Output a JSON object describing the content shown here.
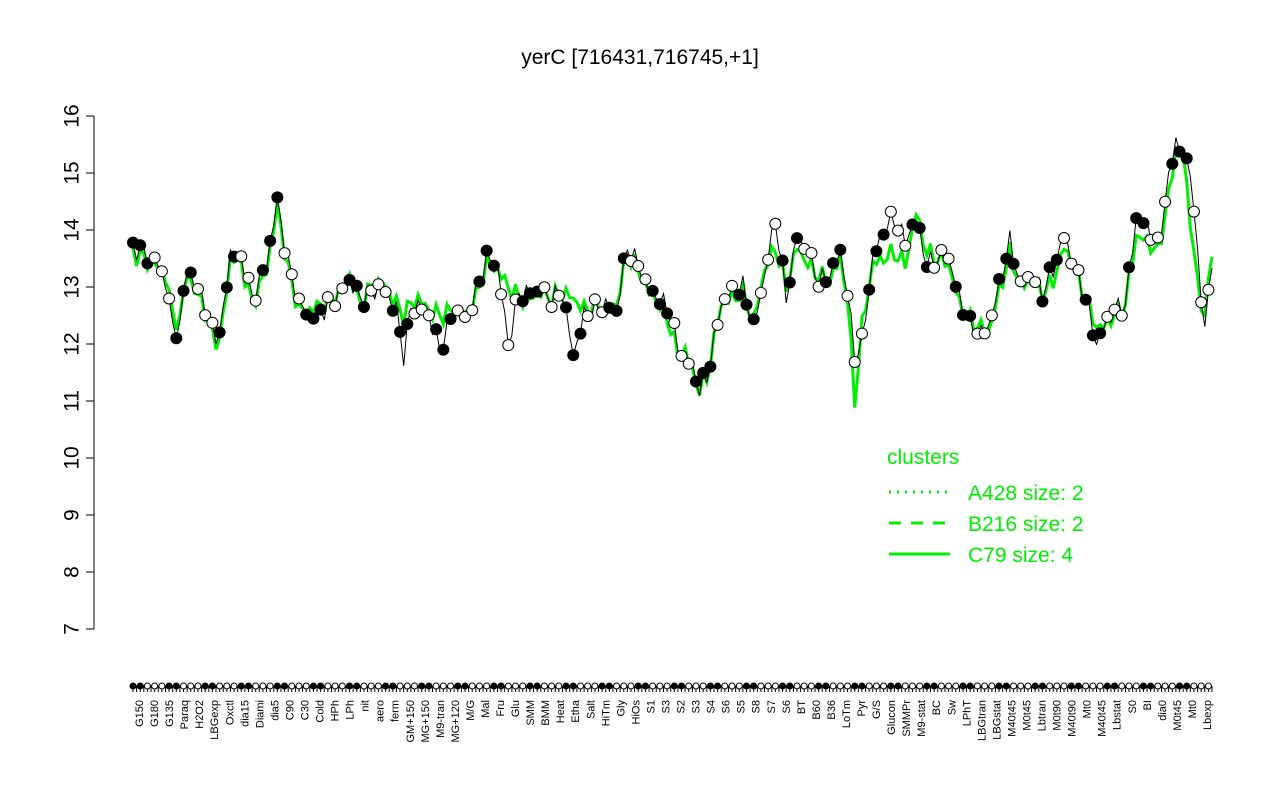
{
  "chart_data": {
    "type": "line",
    "title": "yerC [716431,716745,+1]",
    "xlabel": "",
    "ylabel": "",
    "ylim": [
      7,
      16
    ],
    "yticks": [
      7,
      8,
      9,
      10,
      11,
      12,
      13,
      14,
      15,
      16
    ],
    "grid": false,
    "categories_visible": [
      "G150",
      "G180",
      "G135",
      "Paraq",
      "H2O2",
      "LBGexp",
      "Oxctl",
      "dia15",
      "Diami",
      "dia5",
      "C90",
      "C30",
      "Cold",
      "HPh",
      "LPh",
      "nit",
      "aero",
      "ferm",
      "GM+150",
      "MG+150",
      "M9-tran",
      "MG+120",
      "M/G",
      "Mal",
      "Fru",
      "Glu",
      "SMM",
      "BMM",
      "Heat",
      "Etha",
      "Salt",
      "HiTm",
      "Gly",
      "HiOs",
      "S1",
      "S3",
      "S2",
      "S3",
      "S4",
      "S6",
      "S5",
      "S8",
      "S7",
      "S6",
      "BT",
      "B60",
      "B36",
      "LoTm",
      "Pyr",
      "G/S",
      "Glucon",
      "SMMPr",
      "M9-stat",
      "BC",
      "Sw",
      "LPhT",
      "LBGtran",
      "LBGstat",
      "M40t45",
      "M0t45",
      "Lbtran",
      "M0t90",
      "M40t90",
      "Mt0",
      "M40t45",
      "Lbstat",
      "S0",
      "BI",
      "dia0",
      "M0t45",
      "Mt0",
      "Lbexp"
    ],
    "legend": {
      "title": "clusters",
      "placement": "right",
      "entries": [
        {
          "label": "A428 size: 2",
          "style": "dotted"
        },
        {
          "label": "B216 size: 2",
          "style": "dashed"
        },
        {
          "label": "C79 size: 4",
          "style": "solid"
        }
      ]
    },
    "x_count": 300,
    "series": [
      {
        "kind": "line",
        "color": "#00ee00",
        "anchors": [
          [
            1,
            13.6
          ],
          [
            4,
            13.5
          ],
          [
            7,
            13.4
          ],
          [
            10,
            13.2
          ],
          [
            12,
            12.5
          ],
          [
            14,
            12.4
          ],
          [
            16,
            13.3
          ],
          [
            18,
            12.9
          ],
          [
            20,
            12.8
          ],
          [
            22,
            12.3
          ],
          [
            25,
            12.0
          ],
          [
            28,
            13.5
          ],
          [
            31,
            13.4
          ],
          [
            34,
            12.7
          ],
          [
            38,
            13.3
          ],
          [
            41,
            14.4
          ],
          [
            44,
            13.3
          ],
          [
            47,
            12.6
          ],
          [
            50,
            12.6
          ],
          [
            54,
            12.7
          ],
          [
            58,
            12.9
          ],
          [
            61,
            13.2
          ],
          [
            64,
            12.7
          ],
          [
            67,
            13.0
          ],
          [
            70,
            13.1
          ],
          [
            72,
            12.9
          ],
          [
            74,
            12.7
          ],
          [
            76,
            12.5
          ],
          [
            78,
            12.7
          ],
          [
            80,
            12.8
          ],
          [
            83,
            12.6
          ],
          [
            86,
            12.5
          ],
          [
            90,
            12.6
          ],
          [
            93,
            12.5
          ],
          [
            96,
            12.8
          ],
          [
            99,
            13.4
          ],
          [
            102,
            13.3
          ],
          [
            105,
            13.0
          ],
          [
            108,
            12.8
          ],
          [
            111,
            12.8
          ],
          [
            114,
            12.9
          ],
          [
            117,
            12.8
          ],
          [
            120,
            12.9
          ],
          [
            123,
            12.8
          ],
          [
            126,
            12.6
          ],
          [
            129,
            12.7
          ],
          [
            132,
            12.6
          ],
          [
            135,
            12.7
          ],
          [
            138,
            13.6
          ],
          [
            141,
            13.3
          ],
          [
            144,
            12.9
          ],
          [
            147,
            12.7
          ],
          [
            150,
            12.3
          ],
          [
            152,
            11.8
          ],
          [
            154,
            11.9
          ],
          [
            156,
            11.5
          ],
          [
            158,
            11.2
          ],
          [
            160,
            11.4
          ],
          [
            164,
            12.7
          ],
          [
            167,
            12.8
          ],
          [
            170,
            12.9
          ],
          [
            173,
            12.4
          ],
          [
            176,
            13.3
          ],
          [
            179,
            13.7
          ],
          [
            182,
            13.0
          ],
          [
            185,
            13.7
          ],
          [
            188,
            13.4
          ],
          [
            191,
            13.2
          ],
          [
            194,
            13.1
          ],
          [
            197,
            13.5
          ],
          [
            199,
            12.8
          ],
          [
            201,
            11.0
          ],
          [
            203,
            12.3
          ],
          [
            206,
            13.4
          ],
          [
            209,
            13.5
          ],
          [
            212,
            13.6
          ],
          [
            215,
            13.4
          ],
          [
            218,
            14.3
          ],
          [
            221,
            13.6
          ],
          [
            224,
            13.5
          ],
          [
            227,
            13.4
          ],
          [
            230,
            12.7
          ],
          [
            233,
            12.4
          ],
          [
            236,
            12.3
          ],
          [
            238,
            12.2
          ],
          [
            241,
            12.9
          ],
          [
            244,
            13.6
          ],
          [
            247,
            13.0
          ],
          [
            250,
            13.1
          ],
          [
            253,
            12.9
          ],
          [
            256,
            13.1
          ],
          [
            259,
            13.7
          ],
          [
            262,
            13.3
          ],
          [
            265,
            12.8
          ],
          [
            268,
            12.3
          ],
          [
            270,
            12.3
          ],
          [
            273,
            12.5
          ],
          [
            276,
            12.7
          ],
          [
            279,
            13.9
          ],
          [
            282,
            13.8
          ],
          [
            285,
            13.6
          ],
          [
            288,
            14.6
          ],
          [
            290,
            15.4
          ],
          [
            292,
            15.3
          ],
          [
            294,
            14.2
          ],
          [
            296,
            13.0
          ],
          [
            298,
            12.5
          ],
          [
            300,
            13.6
          ]
        ]
      },
      {
        "kind": "line",
        "color": "#000000",
        "anchors": [
          [
            1,
            13.7
          ],
          [
            4,
            13.6
          ],
          [
            7,
            13.5
          ],
          [
            10,
            13.1
          ],
          [
            12,
            12.3
          ],
          [
            14,
            12.3
          ],
          [
            16,
            13.4
          ],
          [
            18,
            13.0
          ],
          [
            20,
            12.9
          ],
          [
            22,
            12.4
          ],
          [
            25,
            12.1
          ],
          [
            28,
            13.6
          ],
          [
            31,
            13.5
          ],
          [
            34,
            12.8
          ],
          [
            38,
            13.4
          ],
          [
            41,
            14.5
          ],
          [
            44,
            13.4
          ],
          [
            47,
            12.7
          ],
          [
            50,
            12.5
          ],
          [
            54,
            12.6
          ],
          [
            58,
            12.9
          ],
          [
            61,
            13.1
          ],
          [
            64,
            12.8
          ],
          [
            67,
            12.9
          ],
          [
            70,
            13.0
          ],
          [
            72,
            12.8
          ],
          [
            74,
            12.6
          ],
          [
            76,
            11.8
          ],
          [
            78,
            12.6
          ],
          [
            80,
            12.7
          ],
          [
            83,
            12.5
          ],
          [
            86,
            11.9
          ],
          [
            90,
            12.6
          ],
          [
            93,
            12.4
          ],
          [
            96,
            12.9
          ],
          [
            99,
            13.5
          ],
          [
            102,
            13.4
          ],
          [
            105,
            12.0
          ],
          [
            108,
            12.9
          ],
          [
            111,
            12.9
          ],
          [
            114,
            12.9
          ],
          [
            117,
            12.8
          ],
          [
            120,
            12.9
          ],
          [
            123,
            11.8
          ],
          [
            126,
            12.5
          ],
          [
            129,
            12.6
          ],
          [
            132,
            12.7
          ],
          [
            135,
            12.6
          ],
          [
            138,
            13.7
          ],
          [
            141,
            13.4
          ],
          [
            144,
            12.9
          ],
          [
            147,
            12.8
          ],
          [
            150,
            12.5
          ],
          [
            152,
            11.9
          ],
          [
            154,
            11.8
          ],
          [
            156,
            11.6
          ],
          [
            158,
            11.2
          ],
          [
            160,
            11.4
          ],
          [
            164,
            12.7
          ],
          [
            167,
            12.9
          ],
          [
            170,
            13.0
          ],
          [
            173,
            12.3
          ],
          [
            176,
            13.2
          ],
          [
            179,
            14.2
          ],
          [
            182,
            12.8
          ],
          [
            185,
            13.9
          ],
          [
            188,
            13.6
          ],
          [
            191,
            13.1
          ],
          [
            194,
            13.2
          ],
          [
            197,
            13.6
          ],
          [
            199,
            12.9
          ],
          [
            201,
            11.8
          ],
          [
            203,
            12.0
          ],
          [
            206,
            13.5
          ],
          [
            209,
            14.0
          ],
          [
            212,
            14.2
          ],
          [
            215,
            13.8
          ],
          [
            218,
            14.2
          ],
          [
            221,
            13.4
          ],
          [
            224,
            13.5
          ],
          [
            227,
            13.5
          ],
          [
            230,
            12.8
          ],
          [
            233,
            12.3
          ],
          [
            236,
            12.2
          ],
          [
            238,
            12.3
          ],
          [
            241,
            13.0
          ],
          [
            244,
            13.8
          ],
          [
            247,
            13.0
          ],
          [
            250,
            13.2
          ],
          [
            253,
            12.9
          ],
          [
            256,
            13.3
          ],
          [
            259,
            13.9
          ],
          [
            262,
            13.3
          ],
          [
            265,
            12.8
          ],
          [
            268,
            12.0
          ],
          [
            270,
            12.3
          ],
          [
            273,
            12.6
          ],
          [
            276,
            12.7
          ],
          [
            279,
            14.2
          ],
          [
            282,
            14.1
          ],
          [
            285,
            13.7
          ],
          [
            288,
            14.9
          ],
          [
            290,
            15.6
          ],
          [
            292,
            15.2
          ],
          [
            294,
            15.1
          ],
          [
            296,
            13.5
          ],
          [
            298,
            12.3
          ],
          [
            300,
            13.4
          ]
        ]
      }
    ]
  }
}
